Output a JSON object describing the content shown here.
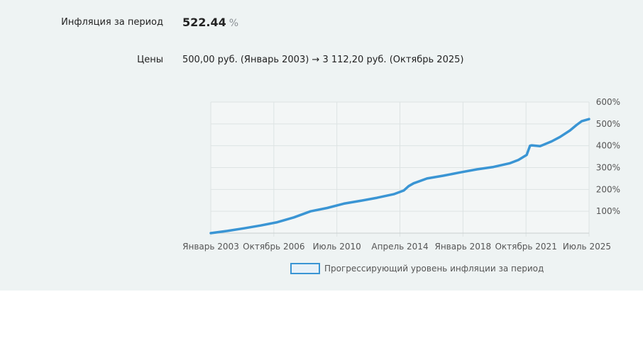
{
  "summary": {
    "inflation_label": "Инфляция за период",
    "inflation_value": "522.44",
    "inflation_unit": "%",
    "prices_label": "Цены",
    "prices_value": "500,00 руб. (Январь 2003) → 3 112,20 руб. (Октябрь 2025)"
  },
  "chart_data": {
    "type": "line",
    "title": "",
    "xlabel": "",
    "ylabel": "",
    "x_tick_labels": [
      "Январь 2003",
      "Октябрь 2006",
      "Июль 2010",
      "Апрель 2014",
      "Январь 2018",
      "Октябрь 2021",
      "Июль 2025"
    ],
    "y_tick_labels": [
      "100%",
      "200%",
      "300%",
      "400%",
      "500%",
      "600%"
    ],
    "y_ticks": [
      100,
      200,
      300,
      400,
      500,
      600
    ],
    "ylim": [
      0,
      600
    ],
    "x_range": [
      2003.0,
      2025.75
    ],
    "grid": true,
    "legend_position": "bottom",
    "color": "#3a95d4",
    "series": [
      {
        "name": "Прогрессирующий уровень инфляции за период",
        "x": [
          2003.0,
          2004.0,
          2005.0,
          2006.0,
          2007.0,
          2008.0,
          2009.0,
          2010.0,
          2011.0,
          2012.0,
          2013.0,
          2014.0,
          2014.6,
          2014.9,
          2015.2,
          2016.0,
          2017.0,
          2018.0,
          2019.0,
          2020.0,
          2021.0,
          2021.5,
          2022.0,
          2022.2,
          2022.3,
          2022.8,
          2023.5,
          2024.0,
          2024.6,
          2025.0,
          2025.3,
          2025.75
        ],
        "y": [
          0,
          10,
          22,
          35,
          50,
          72,
          100,
          115,
          135,
          148,
          162,
          178,
          195,
          215,
          228,
          250,
          263,
          278,
          292,
          303,
          320,
          335,
          358,
          400,
          402,
          398,
          420,
          440,
          470,
          495,
          512,
          522
        ]
      }
    ]
  }
}
